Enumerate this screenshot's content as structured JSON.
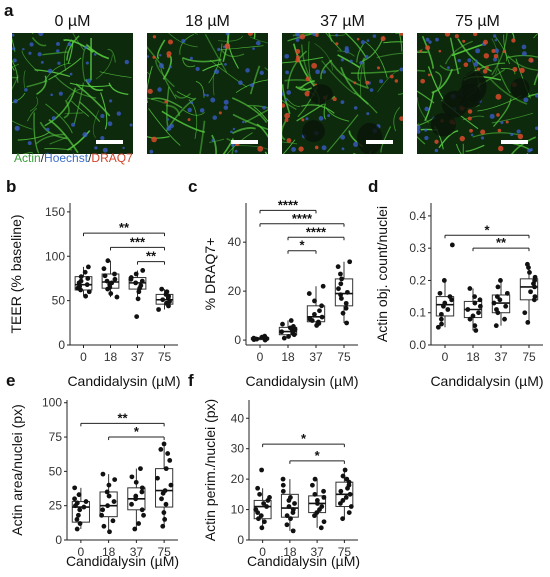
{
  "figure": {
    "panel_letters": {
      "a": "a",
      "b": "b",
      "c": "c",
      "d": "d",
      "e": "e",
      "f": "f"
    },
    "image_panel": {
      "concentrations": [
        "0 µM",
        "18 µM",
        "37 µM",
        "75 µM"
      ],
      "stain_legend": [
        {
          "text": "Actin",
          "color": "#3a9e3a"
        },
        {
          "text": "/",
          "color": "#222222"
        },
        {
          "text": "Hoechst",
          "color": "#3b6fc9"
        },
        {
          "text": "/",
          "color": "#222222"
        },
        {
          "text": "DRAQ7",
          "color": "#d2452b"
        }
      ],
      "colors": {
        "background": "#0d2a0d",
        "actin": "#56c93f",
        "hoechst": "#3b5fd0",
        "draq7": "#d94a2b",
        "scale_bar": "#ffffff"
      }
    }
  },
  "chart_data": [
    {
      "id": "b",
      "type": "box",
      "categories": [
        "0",
        "18",
        "37",
        "75"
      ],
      "xlabel": "Candidalysin (µM)",
      "ylabel": "TEER (% baseline)",
      "ylim": [
        0,
        160
      ],
      "yticks": [
        0,
        50,
        100,
        150
      ],
      "boxes": [
        {
          "q1": 62,
          "median": 68,
          "q3": 77,
          "whisker_low": 55,
          "whisker_high": 88
        },
        {
          "q1": 64,
          "median": 71,
          "q3": 80,
          "whisker_low": 54,
          "whisker_high": 95
        },
        {
          "q1": 63,
          "median": 70,
          "q3": 76,
          "whisker_low": 52,
          "whisker_high": 84
        },
        {
          "q1": 46,
          "median": 51,
          "q3": 57,
          "whisker_low": 40,
          "whisker_high": 63
        }
      ],
      "points": [
        [
          55,
          60,
          62,
          64,
          66,
          68,
          70,
          72,
          75,
          77,
          82,
          88
        ],
        [
          54,
          58,
          63,
          65,
          68,
          70,
          72,
          74,
          78,
          80,
          86,
          95
        ],
        [
          32,
          52,
          60,
          64,
          67,
          70,
          72,
          74,
          76,
          80,
          84
        ],
        [
          40,
          44,
          47,
          49,
          51,
          53,
          55,
          57,
          60,
          63
        ]
      ],
      "significance": [
        {
          "from": 0,
          "to": 3,
          "label": "**",
          "y": 126
        },
        {
          "from": 1,
          "to": 3,
          "label": "***",
          "y": 110
        },
        {
          "from": 2,
          "to": 3,
          "label": "**",
          "y": 94
        }
      ]
    },
    {
      "id": "c",
      "type": "box",
      "categories": [
        "0",
        "18",
        "37",
        "75"
      ],
      "xlabel": "Candidalysin (µM)",
      "ylabel": "% DRAQ7+",
      "ylim": [
        -2,
        56
      ],
      "yticks": [
        0,
        20,
        40
      ],
      "boxes": [
        {
          "q1": 0.2,
          "median": 0.6,
          "q3": 1.0,
          "whisker_low": 0,
          "whisker_high": 1.8
        },
        {
          "q1": 2.2,
          "median": 3.5,
          "q3": 5.2,
          "whisker_low": 0.8,
          "whisker_high": 8
        },
        {
          "q1": 7.5,
          "median": 9.5,
          "q3": 14,
          "whisker_low": 6,
          "whisker_high": 22
        },
        {
          "q1": 14,
          "median": 19,
          "q3": 25,
          "whisker_low": 7,
          "whisker_high": 32
        }
      ],
      "points": [
        [
          0,
          0.2,
          0.4,
          0.5,
          0.6,
          0.8,
          1.0,
          1.2,
          1.6
        ],
        [
          0.8,
          1.5,
          2.2,
          2.8,
          3.4,
          3.8,
          4.4,
          5.0,
          5.6,
          6.5,
          8
        ],
        [
          6,
          6.8,
          7.4,
          8,
          8.6,
          9.4,
          10.5,
          12,
          14,
          16,
          19,
          22
        ],
        [
          7,
          11,
          13,
          15,
          17,
          18.5,
          19.5,
          21,
          23,
          25,
          27,
          30,
          32
        ]
      ],
      "significance": [
        {
          "from": 0,
          "to": 2,
          "label": "****",
          "y": 53
        },
        {
          "from": 0,
          "to": 3,
          "label": "****",
          "y": 47.5
        },
        {
          "from": 1,
          "to": 3,
          "label": "****",
          "y": 42
        },
        {
          "from": 1,
          "to": 2,
          "label": "*",
          "y": 36.5
        }
      ]
    },
    {
      "id": "d",
      "type": "box",
      "categories": [
        "0",
        "18",
        "37",
        "75"
      ],
      "xlabel": "Candidalysin (µM)",
      "ylabel": "Actin obj. count/nuclei",
      "ylim": [
        0,
        0.44
      ],
      "yticks": [
        0.0,
        0.1,
        0.2,
        0.3,
        0.4
      ],
      "ytick_labels": [
        "0.0",
        "0.1",
        "0.2",
        "0.3",
        "0.4"
      ],
      "boxes": [
        {
          "q1": 0.09,
          "median": 0.125,
          "q3": 0.15,
          "whisker_low": 0.055,
          "whisker_high": 0.2
        },
        {
          "q1": 0.085,
          "median": 0.11,
          "q3": 0.135,
          "whisker_low": 0.045,
          "whisker_high": 0.175
        },
        {
          "q1": 0.1,
          "median": 0.13,
          "q3": 0.155,
          "whisker_low": 0.06,
          "whisker_high": 0.2
        },
        {
          "q1": 0.14,
          "median": 0.18,
          "q3": 0.205,
          "whisker_low": 0.07,
          "whisker_high": 0.25
        }
      ],
      "points": [
        [
          0.055,
          0.065,
          0.08,
          0.095,
          0.11,
          0.12,
          0.13,
          0.14,
          0.15,
          0.16,
          0.2,
          0.31
        ],
        [
          0.045,
          0.06,
          0.08,
          0.09,
          0.1,
          0.11,
          0.12,
          0.13,
          0.14,
          0.15,
          0.175
        ],
        [
          0.06,
          0.08,
          0.1,
          0.11,
          0.12,
          0.13,
          0.14,
          0.15,
          0.16,
          0.18,
          0.2
        ],
        [
          0.07,
          0.1,
          0.14,
          0.15,
          0.165,
          0.18,
          0.19,
          0.2,
          0.21,
          0.225,
          0.24,
          0.25
        ]
      ],
      "significance": [
        {
          "from": 0,
          "to": 3,
          "label": "*",
          "y": 0.34
        },
        {
          "from": 1,
          "to": 3,
          "label": "**",
          "y": 0.3
        }
      ]
    },
    {
      "id": "e",
      "type": "box",
      "categories": [
        "0",
        "18",
        "37",
        "75"
      ],
      "xlabel": "Candidalysin (µM)",
      "ylabel": "Actin area/nuclei (px)",
      "ylim": [
        0,
        102
      ],
      "yticks": [
        0,
        25,
        50,
        75,
        100
      ],
      "boxes": [
        {
          "q1": 13,
          "median": 24,
          "q3": 28,
          "whisker_low": 8,
          "whisker_high": 38
        },
        {
          "q1": 17,
          "median": 25,
          "q3": 35,
          "whisker_low": 6,
          "whisker_high": 48
        },
        {
          "q1": 22,
          "median": 30,
          "q3": 38,
          "whisker_low": 8,
          "whisker_high": 52
        },
        {
          "q1": 24,
          "median": 36,
          "q3": 52,
          "whisker_low": 10,
          "whisker_high": 70
        }
      ],
      "points": [
        [
          8,
          12,
          15,
          18,
          22,
          24,
          25,
          27,
          28,
          30,
          33,
          38
        ],
        [
          6,
          10,
          14,
          18,
          22,
          25,
          28,
          32,
          35,
          40,
          44,
          48
        ],
        [
          8,
          12,
          18,
          22,
          26,
          30,
          32,
          35,
          38,
          42,
          46,
          52
        ],
        [
          10,
          15,
          20,
          26,
          30,
          34,
          36,
          40,
          45,
          52,
          58,
          63,
          66,
          70
        ]
      ],
      "significance": [
        {
          "from": 0,
          "to": 3,
          "label": "**",
          "y": 85
        },
        {
          "from": 1,
          "to": 3,
          "label": "*",
          "y": 75
        }
      ]
    },
    {
      "id": "f",
      "type": "box",
      "categories": [
        "0",
        "18",
        "37",
        "75"
      ],
      "xlabel": "Candidalysin (µM)",
      "ylabel": "Actin perim./nuclei (px)",
      "ylim": [
        0,
        46
      ],
      "yticks": [
        0,
        10,
        20,
        30,
        40
      ],
      "boxes": [
        {
          "q1": 7,
          "median": 11,
          "q3": 13,
          "whisker_low": 4,
          "whisker_high": 17
        },
        {
          "q1": 7.5,
          "median": 10.5,
          "q3": 15,
          "whisker_low": 3,
          "whisker_high": 20
        },
        {
          "q1": 9,
          "median": 12,
          "q3": 14.5,
          "whisker_low": 4,
          "whisker_high": 20
        },
        {
          "q1": 11,
          "median": 15,
          "q3": 19,
          "whisker_low": 7,
          "whisker_high": 23
        }
      ],
      "points": [
        [
          4,
          6,
          7,
          8,
          9,
          10,
          11,
          12,
          13,
          14,
          15,
          17,
          23
        ],
        [
          3,
          5,
          7,
          8,
          9,
          10,
          11,
          12,
          13,
          14,
          16,
          18,
          20
        ],
        [
          4,
          6,
          8,
          9,
          10,
          11,
          12,
          13,
          14,
          15,
          16,
          18,
          20
        ],
        [
          7,
          9,
          11,
          12,
          13,
          14,
          15,
          16,
          17,
          18,
          19,
          20,
          21,
          23
        ]
      ],
      "significance": [
        {
          "from": 0,
          "to": 3,
          "label": "*",
          "y": 31.5
        },
        {
          "from": 1,
          "to": 3,
          "label": "*",
          "y": 26
        }
      ]
    }
  ]
}
